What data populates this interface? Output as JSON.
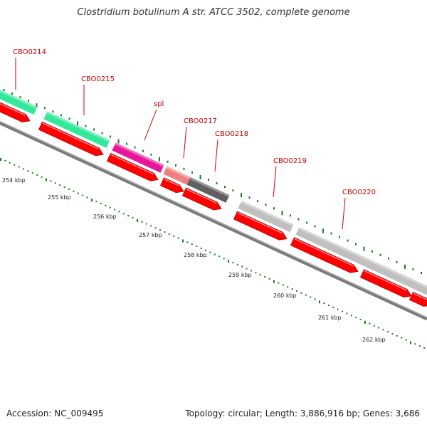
{
  "title": "Clostridium botulinum A str. ATCC 3502, complete genome",
  "footer": {
    "accession": "Accession: NC_009495",
    "stats": "Topology: circular; Length: 3,886,916 bp; Genes: 3,686"
  },
  "colors": {
    "cds_arrow": "#ff0000",
    "backbone": "#808080",
    "tick": "#1a7a1a",
    "label": "#cc0000"
  },
  "genes": [
    {
      "label": "CBO0214",
      "color": "#33e89a"
    },
    {
      "label": "CBO0215",
      "color": "#33e89a"
    },
    {
      "label": "spl",
      "color": "#e8179a"
    },
    {
      "label": "CBO0217",
      "color": "#f08080"
    },
    {
      "label": "CBO0218",
      "color": "#606060"
    },
    {
      "label": "CBO0219",
      "color": "#c0c0c0"
    },
    {
      "label": "CBO0220",
      "color": "#c0c0c0"
    }
  ],
  "kbp_labels": [
    "254 kbp",
    "255 kbp",
    "256 kbp",
    "257 kbp",
    "258 kbp",
    "259 kbp",
    "260 kbp",
    "261 kbp",
    "262 kbp"
  ]
}
